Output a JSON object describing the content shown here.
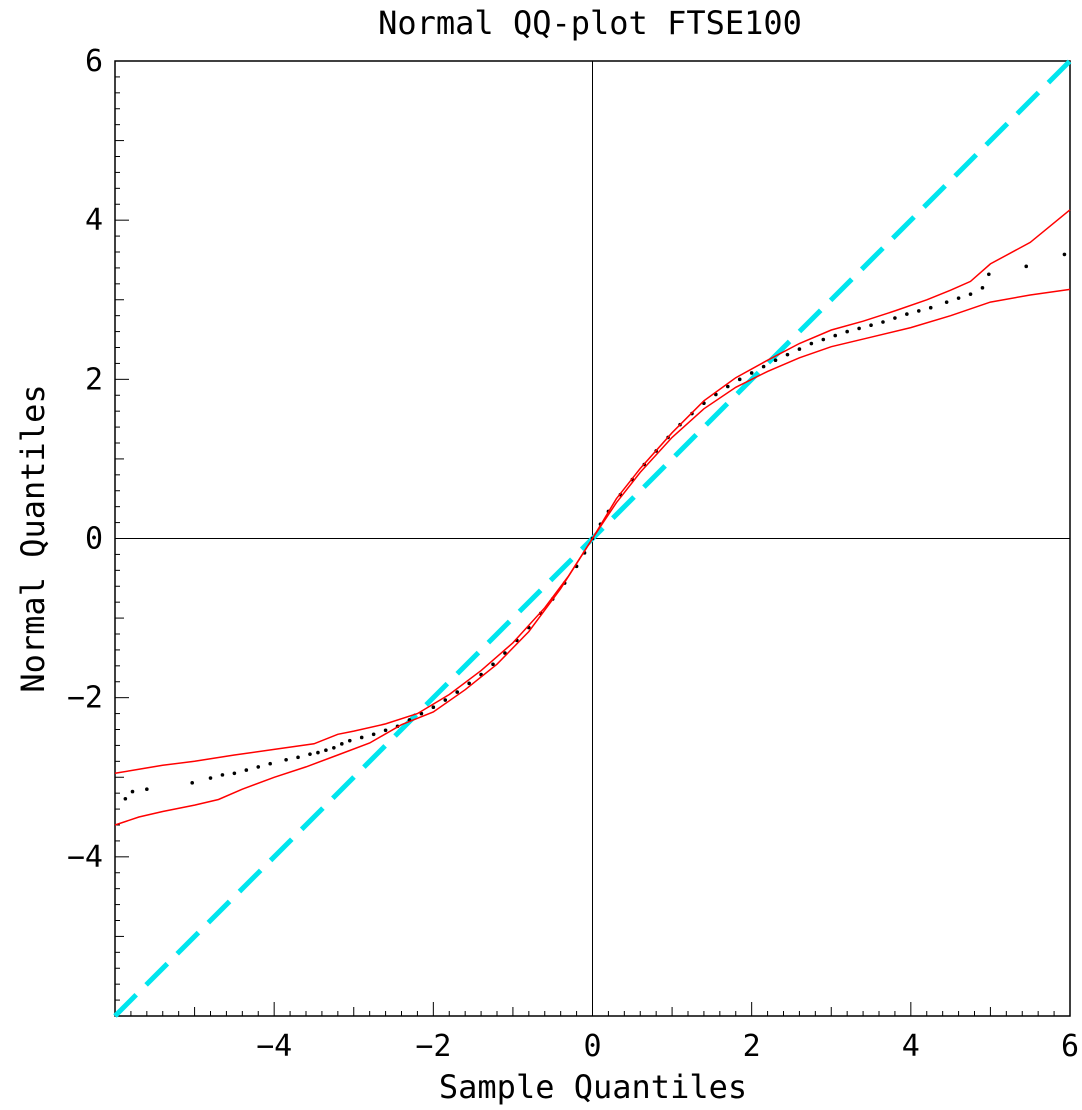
{
  "chart_data": {
    "type": "scatter",
    "title": "Normal QQ-plot FTSE100",
    "xlabel": "Sample Quantiles",
    "ylabel": "Normal Quantiles",
    "xlim": [
      -6,
      6
    ],
    "ylim": [
      -6,
      6
    ],
    "x_ticks": [
      -4,
      -2,
      0,
      2,
      4,
      6
    ],
    "y_ticks": [
      -4,
      -2,
      0,
      2,
      4,
      6
    ],
    "grid": false,
    "legend": "none",
    "colors": {
      "points": "#000000",
      "band": "#ff0000",
      "reference_line": "#00e5ee",
      "axes": "#000000"
    },
    "reference_line": {
      "style": "dashed",
      "from": [
        -6,
        -6
      ],
      "to": [
        6,
        6
      ]
    },
    "series": [
      {
        "kind": "points",
        "points": [
          [
            -5.87,
            -3.27
          ],
          [
            -5.78,
            -3.18
          ],
          [
            -5.6,
            -3.15
          ],
          [
            -5.03,
            -3.07
          ],
          [
            -4.8,
            -3.01
          ],
          [
            -4.65,
            -2.97
          ],
          [
            -4.5,
            -2.95
          ],
          [
            -4.35,
            -2.91
          ],
          [
            -4.2,
            -2.87
          ],
          [
            -4.05,
            -2.83
          ],
          [
            -3.85,
            -2.78
          ],
          [
            -3.7,
            -2.75
          ],
          [
            -3.55,
            -2.71
          ],
          [
            -3.45,
            -2.69
          ],
          [
            -3.35,
            -2.66
          ],
          [
            -3.25,
            -2.63
          ],
          [
            -3.15,
            -2.58
          ],
          [
            -3.05,
            -2.54
          ],
          [
            -2.9,
            -2.5
          ],
          [
            -2.75,
            -2.46
          ],
          [
            -2.6,
            -2.41
          ],
          [
            -2.45,
            -2.36
          ],
          [
            -2.3,
            -2.28
          ],
          [
            -2.15,
            -2.2
          ],
          [
            -2.0,
            -2.12
          ],
          [
            -1.85,
            -2.03
          ],
          [
            -1.7,
            -1.93
          ],
          [
            -1.55,
            -1.82
          ],
          [
            -1.4,
            -1.71
          ],
          [
            -1.25,
            -1.58
          ],
          [
            -1.1,
            -1.44
          ],
          [
            -0.95,
            -1.28
          ],
          [
            -0.8,
            -1.12
          ],
          [
            -0.65,
            -0.94
          ],
          [
            -0.5,
            -0.76
          ],
          [
            -0.35,
            -0.56
          ],
          [
            -0.2,
            -0.35
          ],
          [
            -0.1,
            -0.18
          ],
          [
            0.0,
            0.0
          ],
          [
            0.1,
            0.18
          ],
          [
            0.2,
            0.34
          ],
          [
            0.35,
            0.55
          ],
          [
            0.5,
            0.74
          ],
          [
            0.65,
            0.93
          ],
          [
            0.8,
            1.1
          ],
          [
            0.95,
            1.27
          ],
          [
            1.1,
            1.43
          ],
          [
            1.25,
            1.57
          ],
          [
            1.4,
            1.7
          ],
          [
            1.55,
            1.81
          ],
          [
            1.7,
            1.91
          ],
          [
            1.85,
            2.0
          ],
          [
            2.0,
            2.08
          ],
          [
            2.15,
            2.16
          ],
          [
            2.3,
            2.24
          ],
          [
            2.45,
            2.31
          ],
          [
            2.6,
            2.38
          ],
          [
            2.75,
            2.45
          ],
          [
            2.9,
            2.5
          ],
          [
            3.05,
            2.55
          ],
          [
            3.2,
            2.6
          ],
          [
            3.35,
            2.64
          ],
          [
            3.5,
            2.68
          ],
          [
            3.65,
            2.72
          ],
          [
            3.8,
            2.77
          ],
          [
            3.95,
            2.82
          ],
          [
            4.1,
            2.86
          ],
          [
            4.25,
            2.9
          ],
          [
            4.45,
            2.97
          ],
          [
            4.6,
            3.02
          ],
          [
            4.75,
            3.07
          ],
          [
            4.9,
            3.15
          ],
          [
            4.98,
            3.32
          ],
          [
            5.45,
            3.42
          ],
          [
            5.93,
            3.57
          ]
        ]
      },
      {
        "kind": "band_upper",
        "points": [
          [
            -6.0,
            -2.95
          ],
          [
            -5.7,
            -2.9
          ],
          [
            -5.4,
            -2.85
          ],
          [
            -5.0,
            -2.8
          ],
          [
            -4.5,
            -2.72
          ],
          [
            -4.0,
            -2.65
          ],
          [
            -3.5,
            -2.58
          ],
          [
            -3.2,
            -2.46
          ],
          [
            -3.0,
            -2.42
          ],
          [
            -2.6,
            -2.33
          ],
          [
            -2.2,
            -2.2
          ],
          [
            -1.8,
            -1.96
          ],
          [
            -1.4,
            -1.66
          ],
          [
            -1.0,
            -1.31
          ],
          [
            -0.6,
            -0.87
          ],
          [
            -0.3,
            -0.47
          ],
          [
            0.0,
            0.0
          ],
          [
            0.3,
            0.5
          ],
          [
            0.6,
            0.88
          ],
          [
            1.0,
            1.33
          ],
          [
            1.4,
            1.73
          ],
          [
            1.8,
            2.02
          ],
          [
            2.2,
            2.24
          ],
          [
            2.6,
            2.45
          ],
          [
            3.0,
            2.62
          ],
          [
            3.4,
            2.73
          ],
          [
            3.8,
            2.86
          ],
          [
            4.2,
            3.0
          ],
          [
            4.5,
            3.12
          ],
          [
            4.75,
            3.23
          ],
          [
            5.0,
            3.45
          ],
          [
            5.5,
            3.72
          ],
          [
            6.0,
            4.13
          ]
        ]
      },
      {
        "kind": "band_lower",
        "points": [
          [
            -6.0,
            -3.6
          ],
          [
            -5.7,
            -3.5
          ],
          [
            -5.4,
            -3.43
          ],
          [
            -5.0,
            -3.35
          ],
          [
            -4.7,
            -3.28
          ],
          [
            -4.4,
            -3.15
          ],
          [
            -4.0,
            -3.0
          ],
          [
            -3.6,
            -2.87
          ],
          [
            -3.2,
            -2.72
          ],
          [
            -2.8,
            -2.57
          ],
          [
            -2.4,
            -2.34
          ],
          [
            -2.0,
            -2.18
          ],
          [
            -1.6,
            -1.9
          ],
          [
            -1.2,
            -1.58
          ],
          [
            -0.8,
            -1.17
          ],
          [
            -0.4,
            -0.63
          ],
          [
            0.0,
            0.0
          ],
          [
            0.3,
            0.45
          ],
          [
            0.6,
            0.83
          ],
          [
            1.0,
            1.27
          ],
          [
            1.4,
            1.63
          ],
          [
            1.8,
            1.9
          ],
          [
            2.2,
            2.1
          ],
          [
            2.6,
            2.27
          ],
          [
            3.0,
            2.41
          ],
          [
            3.5,
            2.53
          ],
          [
            4.0,
            2.65
          ],
          [
            4.5,
            2.8
          ],
          [
            5.0,
            2.97
          ],
          [
            5.5,
            3.06
          ],
          [
            6.0,
            3.13
          ]
        ]
      }
    ]
  }
}
